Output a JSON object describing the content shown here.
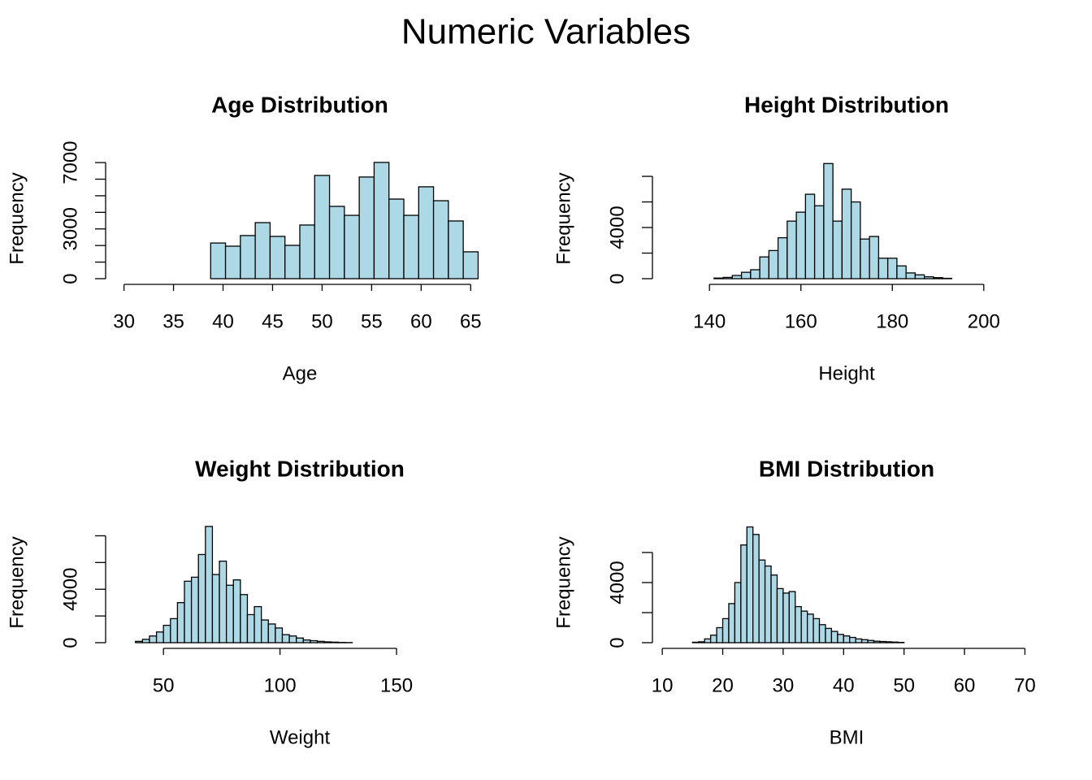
{
  "title": "Numeric Variables",
  "chart_data": [
    {
      "type": "histogram",
      "title": "Age Distribution",
      "xlabel": "Age",
      "ylabel": "Frequency",
      "color": "#add8e6",
      "bins": [
        29.75,
        31.25,
        32.75,
        34.25,
        35.75,
        37.25,
        38.75,
        40.25,
        41.75,
        43.25,
        44.75,
        46.25,
        47.75,
        49.25,
        50.75,
        52.25,
        53.75,
        55.25,
        56.75,
        58.25,
        59.75,
        61.25,
        62.75,
        64.25,
        65.75
      ],
      "counts": [
        0,
        0,
        0,
        0,
        0,
        0,
        2150,
        1960,
        2600,
        3380,
        2550,
        2010,
        3235,
        6225,
        4360,
        3820,
        6130,
        7010,
        4800,
        3820,
        5540,
        4700,
        3480,
        1620
      ],
      "xlim": [
        28.31,
        67.19
      ],
      "ylim": [
        0,
        7250
      ],
      "xticks": [
        30,
        35,
        40,
        45,
        50,
        55,
        60,
        65
      ],
      "yticks": [
        0,
        3000,
        7000
      ],
      "yminorticks": [
        1000,
        2000,
        4000,
        5000,
        6000
      ]
    },
    {
      "type": "histogram",
      "title": "Height Distribution",
      "xlabel": "Height",
      "ylabel": "Frequency",
      "color": "#add8e6",
      "bins": [
        131,
        133,
        135,
        137,
        139,
        141,
        143,
        145,
        147,
        149,
        151,
        153,
        155,
        157,
        159,
        161,
        163,
        165,
        167,
        169,
        171,
        173,
        175,
        177,
        179,
        181,
        183,
        185,
        187,
        189,
        191,
        193,
        195,
        197,
        199,
        201,
        203,
        205,
        207,
        209
      ],
      "counts": [
        0,
        0,
        0,
        0,
        0,
        50,
        100,
        250,
        500,
        700,
        1700,
        2200,
        3200,
        4500,
        5200,
        6600,
        5700,
        9000,
        4500,
        7000,
        6000,
        3100,
        3300,
        1600,
        1600,
        1000,
        450,
        300,
        150,
        80,
        30,
        0,
        0,
        0,
        0,
        0,
        0,
        0,
        0
      ],
      "xlim": [
        127.88,
        212.12
      ],
      "ylim": [
        0,
        9400
      ],
      "xticks": [
        140,
        160,
        180,
        200
      ],
      "yticks": [
        0,
        4000
      ],
      "yminorticks": [
        2000,
        6000,
        8000
      ]
    },
    {
      "type": "histogram",
      "title": "Weight Distribution",
      "xlabel": "Weight",
      "ylabel": "Frequency",
      "color": "#add8e6",
      "bins": [
        32,
        35,
        38,
        41,
        44,
        47,
        50,
        53,
        56,
        59,
        62,
        65,
        68,
        71,
        74,
        77,
        80,
        83,
        86,
        89,
        92,
        95,
        98,
        101,
        104,
        107,
        110,
        113,
        116,
        119,
        122,
        125,
        128,
        131,
        134,
        137,
        140,
        143,
        146,
        149,
        152,
        155,
        158,
        161,
        164,
        167,
        170,
        173,
        176,
        179,
        182,
        185
      ],
      "counts": [
        0,
        0,
        100,
        250,
        500,
        800,
        1300,
        1800,
        3000,
        4600,
        4900,
        6600,
        8700,
        5100,
        6100,
        4300,
        4700,
        3600,
        2100,
        2700,
        1700,
        1400,
        1100,
        600,
        500,
        350,
        200,
        150,
        100,
        60,
        40,
        20,
        10,
        0,
        0,
        0,
        0,
        0,
        0,
        0,
        0,
        0,
        0,
        0,
        0,
        0,
        0,
        0,
        0,
        0,
        0
      ],
      "xlim": [
        25.88,
        191.12
      ],
      "ylim": [
        0,
        9000
      ],
      "xticks": [
        50,
        100,
        150
      ],
      "yticks": [
        0,
        4000
      ],
      "yminorticks": [
        2000,
        6000,
        8000
      ]
    },
    {
      "type": "histogram",
      "title": "BMI Distribution",
      "xlabel": "BMI",
      "ylabel": "Frequency",
      "color": "#add8e6",
      "bins": [
        11,
        12,
        13,
        14,
        15,
        16,
        17,
        18,
        19,
        20,
        21,
        22,
        23,
        24,
        25,
        26,
        27,
        28,
        29,
        30,
        31,
        32,
        33,
        34,
        35,
        36,
        37,
        38,
        39,
        40,
        41,
        42,
        43,
        44,
        45,
        46,
        47,
        48,
        49,
        50,
        51,
        52,
        53,
        54,
        55,
        56,
        57,
        58,
        59,
        60,
        61,
        62,
        63,
        64,
        65,
        66,
        67,
        68,
        69,
        70
      ],
      "counts": [
        0,
        0,
        0,
        0,
        30,
        60,
        250,
        500,
        1000,
        1600,
        2600,
        4000,
        6500,
        7700,
        7200,
        5500,
        5100,
        4500,
        3600,
        3300,
        3400,
        2400,
        2100,
        1900,
        1600,
        1200,
        950,
        750,
        550,
        450,
        350,
        250,
        200,
        150,
        100,
        80,
        60,
        40,
        20,
        0,
        0,
        0,
        0,
        0,
        0,
        0,
        0,
        0,
        0,
        0,
        0,
        0,
        0,
        0,
        0,
        0,
        0,
        0,
        0
      ],
      "xlim": [
        8.64,
        72.36
      ],
      "ylim": [
        0,
        8000
      ],
      "xticks": [
        10,
        20,
        30,
        40,
        50,
        60,
        70
      ],
      "yticks": [
        0,
        4000
      ],
      "yminorticks": [
        2000,
        6000
      ]
    }
  ]
}
